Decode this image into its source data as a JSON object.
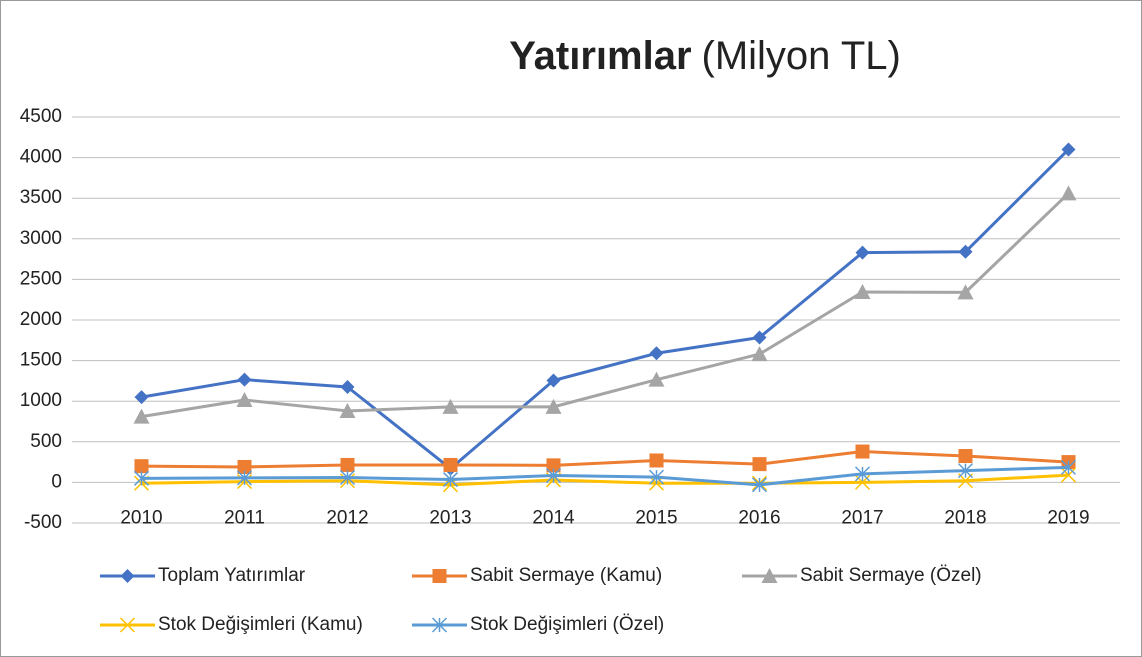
{
  "chart_data": {
    "type": "line",
    "title": [
      "Yatırımlar",
      "(Milyon TL)"
    ],
    "categories": [
      "2010",
      "2011",
      "2012",
      "2013",
      "2014",
      "2015",
      "2016",
      "2017",
      "2018",
      "2019"
    ],
    "series": [
      {
        "name": "Toplam Yatırımlar",
        "color": "#4472c4",
        "marker": "diamond",
        "values": [
          1050,
          1265,
          1175,
          170,
          1255,
          1590,
          1785,
          2830,
          2840,
          4100
        ]
      },
      {
        "name": "Sabit Sermaye (Kamu)",
        "color": "#ed7d31",
        "marker": "square",
        "values": [
          200,
          190,
          215,
          215,
          210,
          270,
          225,
          380,
          325,
          250
        ]
      },
      {
        "name": "Sabit Sermaye (Özel)",
        "color": "#a5a5a5",
        "marker": "triangle",
        "values": [
          810,
          1015,
          880,
          930,
          930,
          1265,
          1580,
          2345,
          2340,
          3560
        ]
      },
      {
        "name": "Stok Değişimleri (Kamu)",
        "color": "#ffc000",
        "marker": "x",
        "values": [
          -10,
          10,
          20,
          -30,
          30,
          -10,
          -10,
          0,
          20,
          90
        ]
      },
      {
        "name": "Stok Değişimleri (Özel)",
        "color": "#5b9bd5",
        "marker": "asterisk",
        "values": [
          50,
          55,
          60,
          35,
          85,
          65,
          -30,
          105,
          145,
          185
        ]
      }
    ],
    "ylim": [
      -500,
      4500
    ],
    "yticks": [
      -500,
      0,
      500,
      1000,
      1500,
      2000,
      2500,
      3000,
      3500,
      4000,
      4500
    ],
    "grid": true,
    "legend": "bottom"
  }
}
